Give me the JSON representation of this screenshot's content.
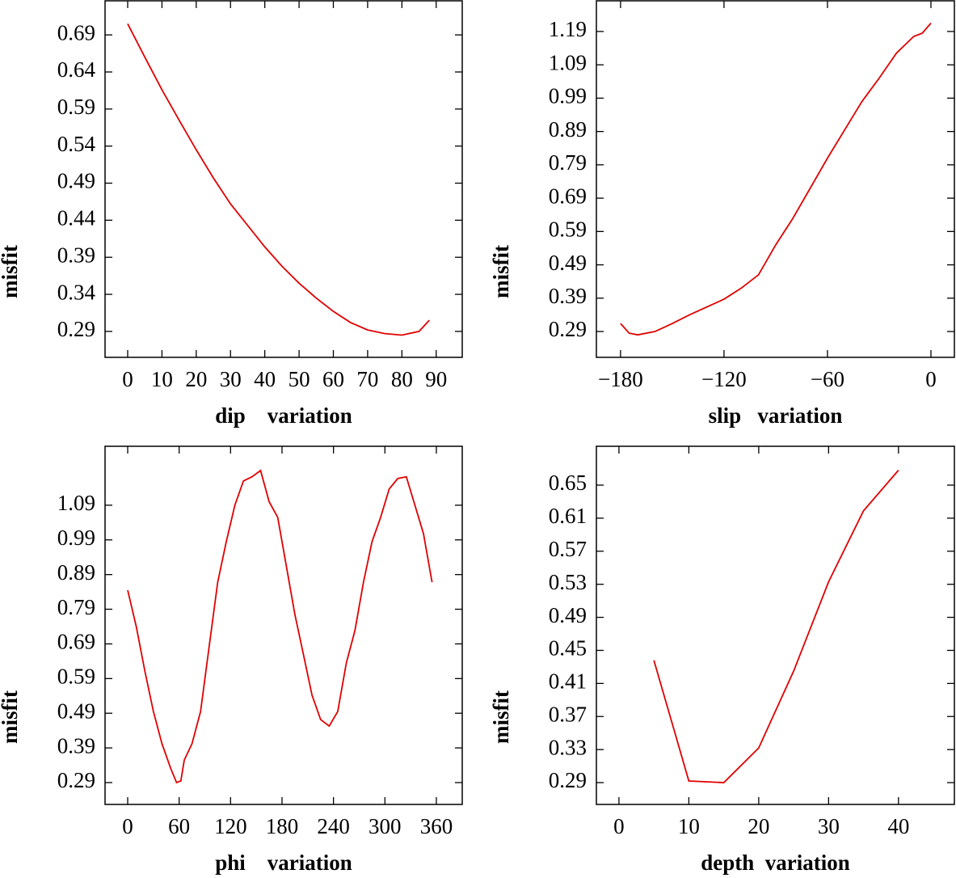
{
  "chart_data": [
    {
      "type": "line",
      "xlabel": "dip    variation",
      "ylabel": "misfit",
      "color": "#e00000",
      "x": [
        0,
        5,
        10,
        15,
        20,
        25,
        30,
        35,
        40,
        45,
        50,
        55,
        60,
        65,
        70,
        75,
        80,
        85,
        88
      ],
      "values": [
        0.705,
        0.66,
        0.616,
        0.575,
        0.535,
        0.497,
        0.462,
        0.433,
        0.404,
        0.378,
        0.355,
        0.335,
        0.317,
        0.302,
        0.292,
        0.287,
        0.285,
        0.29,
        0.305
      ],
      "xlim": [
        -6.6,
        97.6
      ],
      "ylim": [
        0.255,
        0.736
      ],
      "xticks": [
        0,
        10,
        20,
        30,
        40,
        50,
        60,
        70,
        80,
        90
      ],
      "yticks": [
        0.29,
        0.34,
        0.39,
        0.44,
        0.49,
        0.54,
        0.59,
        0.64,
        0.69
      ]
    },
    {
      "type": "line",
      "xlabel": "slip   variation",
      "ylabel": "misfit",
      "color": "#e00000",
      "x": [
        -180,
        -175,
        -170,
        -160,
        -150,
        -140,
        -120,
        -110,
        -100,
        -90,
        -80,
        -70,
        -60,
        -50,
        -40,
        -30,
        -20,
        -10,
        -5,
        0
      ],
      "values": [
        0.314,
        0.285,
        0.28,
        0.29,
        0.314,
        0.34,
        0.387,
        0.42,
        0.46,
        0.55,
        0.63,
        0.72,
        0.81,
        0.895,
        0.98,
        1.05,
        1.125,
        1.175,
        1.185,
        1.215
      ],
      "xlim": [
        -194,
        13.6
      ],
      "ylim": [
        0.2125,
        1.282
      ],
      "xticks": [
        {
          "value": -180,
          "label": "−180"
        },
        {
          "value": -120,
          "label": "−120"
        },
        {
          "value": -60,
          "label": "−60"
        },
        0
      ],
      "yticks": [
        0.29,
        0.39,
        0.49,
        0.59,
        0.69,
        0.79,
        0.89,
        0.99,
        1.09,
        1.19
      ]
    },
    {
      "type": "line",
      "xlabel": "phi    variation",
      "ylabel": "misfit",
      "color": "#e00000",
      "x": [
        0,
        10,
        20,
        30,
        40,
        50,
        57,
        62,
        66,
        75,
        85,
        95,
        105,
        115,
        125,
        135,
        145,
        155,
        165,
        175,
        185,
        195,
        205,
        215,
        225,
        235,
        245,
        255,
        265,
        275,
        285,
        295,
        305,
        315,
        325,
        335,
        345,
        355
      ],
      "values": [
        0.845,
        0.74,
        0.612,
        0.495,
        0.402,
        0.332,
        0.29,
        0.295,
        0.355,
        0.402,
        0.495,
        0.682,
        0.868,
        0.985,
        1.09,
        1.16,
        1.172,
        1.19,
        1.1,
        1.055,
        0.915,
        0.775,
        0.659,
        0.542,
        0.472,
        0.453,
        0.495,
        0.635,
        0.728,
        0.868,
        0.985,
        1.055,
        1.137,
        1.167,
        1.172,
        1.09,
        1.008,
        0.868
      ],
      "xlim": [
        -26.4,
        390.2
      ],
      "ylim": [
        0.227,
        1.26
      ],
      "xticks": [
        0,
        60,
        120,
        180,
        240,
        300,
        360
      ],
      "yticks": [
        0.29,
        0.39,
        0.49,
        0.59,
        0.69,
        0.79,
        0.89,
        0.99,
        1.09
      ]
    },
    {
      "type": "line",
      "xlabel": "depth  variation",
      "ylabel": "misfit",
      "color": "#e00000",
      "x": [
        5,
        10,
        15,
        20,
        25,
        30,
        35,
        40
      ],
      "values": [
        0.438,
        0.292,
        0.29,
        0.332,
        0.425,
        0.533,
        0.619,
        0.668
      ],
      "xlim": [
        -3.23,
        48.0
      ],
      "ylim": [
        0.2636,
        0.697
      ],
      "xticks": [
        0,
        10,
        20,
        30,
        40
      ],
      "yticks": [
        0.29,
        0.33,
        0.37,
        0.41,
        0.45,
        0.49,
        0.53,
        0.57,
        0.61,
        0.65
      ]
    }
  ]
}
